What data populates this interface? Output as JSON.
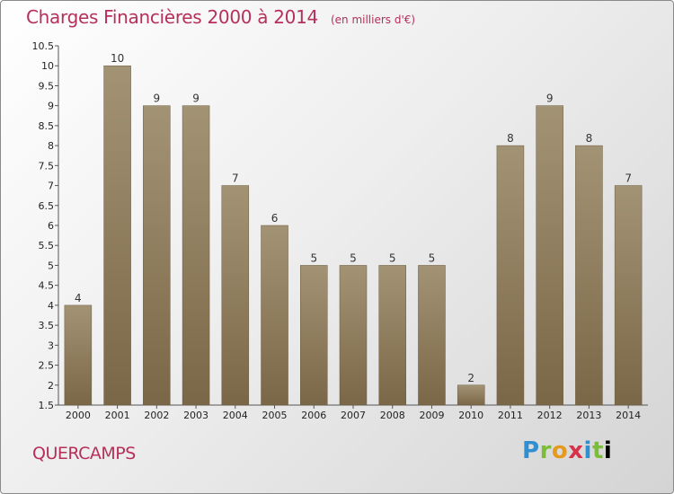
{
  "header": {
    "title": "Charges Financières 2000 à 2014",
    "unit": "(en milliers d'€)"
  },
  "footer": {
    "commune": "QUERCAMPS",
    "logo_letters": [
      "P",
      "r",
      "o",
      "x",
      "i",
      "t",
      "i"
    ]
  },
  "colors": {
    "title": "#b5305a",
    "bar_top": "#a39375",
    "bar_bottom": "#7a6747"
  },
  "chart_data": {
    "type": "bar",
    "title": "Charges Financières 2000 à 2014",
    "subtitle": "(en milliers d'€)",
    "categories": [
      "2000",
      "2001",
      "2002",
      "2003",
      "2004",
      "2005",
      "2006",
      "2007",
      "2008",
      "2009",
      "2010",
      "2011",
      "2012",
      "2013",
      "2014"
    ],
    "values": [
      4,
      10,
      9,
      9,
      7,
      6,
      5,
      5,
      5,
      5,
      2,
      8,
      9,
      8,
      7
    ],
    "value_labels": [
      "4",
      "10",
      "9",
      "9",
      "7",
      "6",
      "5",
      "5",
      "5",
      "5",
      "2",
      "8",
      "9",
      "8",
      "7"
    ],
    "ylim": [
      1.5,
      10.5
    ],
    "yticks": [
      "1.5",
      "2",
      "2.5",
      "3",
      "3.5",
      "4",
      "4.5",
      "5",
      "5.5",
      "6",
      "6.5",
      "7",
      "7.5",
      "8",
      "8.5",
      "9",
      "9.5",
      "10",
      "10.5"
    ],
    "grid": false,
    "legend": "none"
  }
}
